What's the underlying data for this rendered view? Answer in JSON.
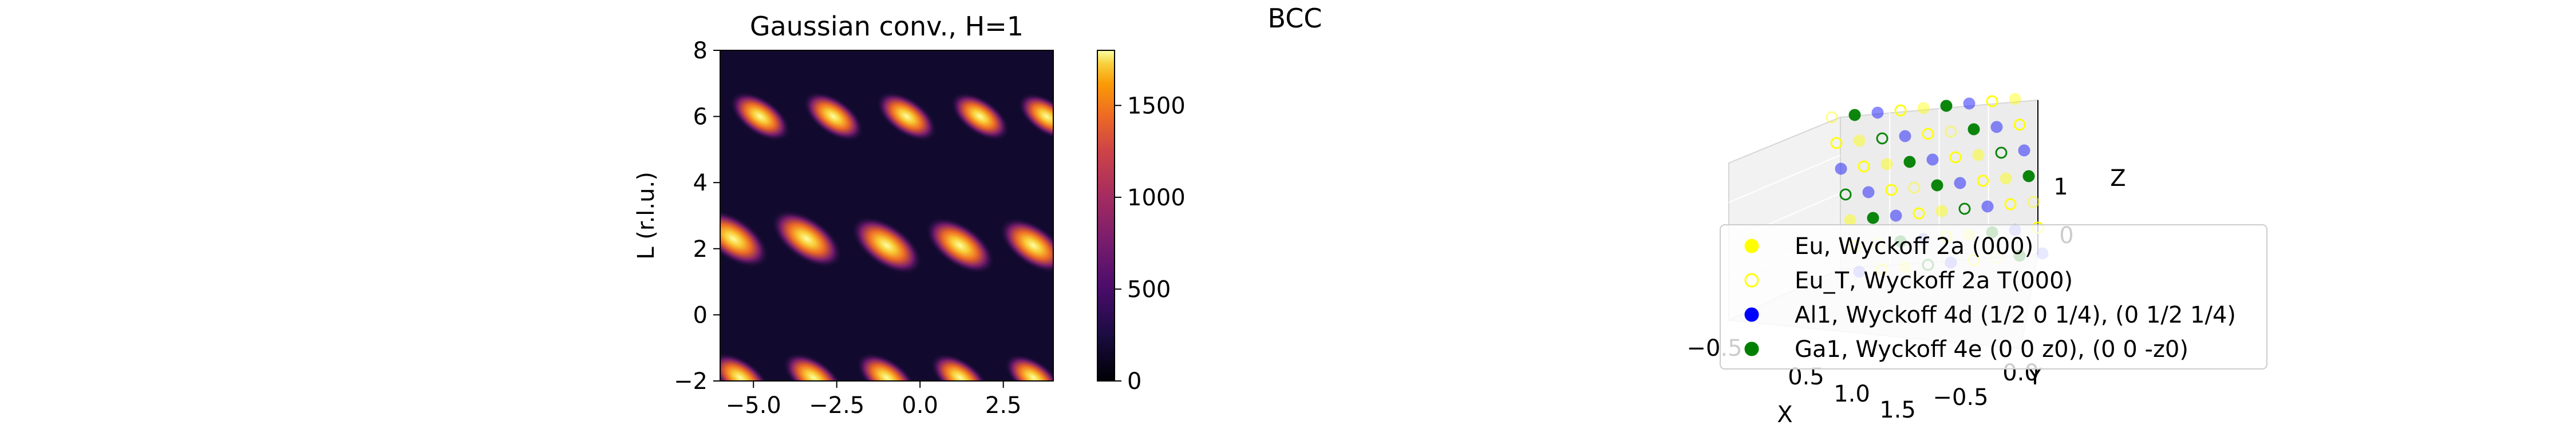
{
  "figure": {
    "suptitle": "BCC"
  },
  "chart_data": [
    {
      "type": "heatmap",
      "title": "Gaussian conv., H=1",
      "xlabel": "",
      "ylabel": "L (r.l.u.)",
      "xlim": [
        -6,
        4
      ],
      "ylim": [
        -2,
        8
      ],
      "x_ticks": [
        -5.0,
        -2.5,
        0.0,
        2.5
      ],
      "x_tick_labels": [
        "−5.0",
        "−2.5",
        "0.0",
        "2.5"
      ],
      "y_ticks": [
        -2,
        0,
        2,
        4,
        6,
        8
      ],
      "y_tick_labels": [
        "−2",
        "0",
        "2",
        "4",
        "6",
        "8"
      ],
      "colormap": "inferno",
      "colorbar": {
        "range": [
          0,
          1800
        ],
        "ticks": [
          0,
          500,
          1000,
          1500
        ],
        "tick_labels": [
          "0",
          "500",
          "1000",
          "1500"
        ]
      },
      "peaks": [
        {
          "x": -5.6,
          "y": 2.3,
          "value": 1800
        },
        {
          "x": -3.4,
          "y": 2.3,
          "value": 1800
        },
        {
          "x": -1.0,
          "y": 2.1,
          "value": 1800
        },
        {
          "x": 1.2,
          "y": 2.1,
          "value": 1750
        },
        {
          "x": 3.4,
          "y": 2.1,
          "value": 1700
        },
        {
          "x": -4.8,
          "y": 6.0,
          "value": 1500
        },
        {
          "x": -2.6,
          "y": 6.0,
          "value": 1500
        },
        {
          "x": -0.4,
          "y": 6.0,
          "value": 1500
        },
        {
          "x": 1.8,
          "y": 6.0,
          "value": 1450
        },
        {
          "x": 3.8,
          "y": 6.0,
          "value": 1400
        },
        {
          "x": -5.4,
          "y": -1.9,
          "value": 1500
        },
        {
          "x": -3.2,
          "y": -1.9,
          "value": 1500
        },
        {
          "x": -1.0,
          "y": -1.9,
          "value": 1500
        },
        {
          "x": 1.2,
          "y": -1.9,
          "value": 1450
        },
        {
          "x": 3.4,
          "y": -1.9,
          "value": 1400
        }
      ]
    },
    {
      "type": "scatter3d",
      "axes": {
        "x": {
          "label": "X",
          "tick_labels": [
            "0.5",
            "1.0",
            "1.5"
          ]
        },
        "y": {
          "label": "Y",
          "tick_labels": [
            "−0.5",
            "0.0"
          ]
        },
        "z": {
          "label": "Z",
          "tick_labels": [
            "1",
            "0"
          ]
        },
        "extra_tick_labels": [
          "−0.5"
        ]
      },
      "legend": {
        "placement": "lower-center",
        "entries": [
          {
            "label": "Eu, Wyckoff 2a (000)",
            "marker": "filled",
            "color": "#ffff00"
          },
          {
            "label": "Eu_T, Wyckoff 2a T(000)",
            "marker": "hollow",
            "color": "#ffff00"
          },
          {
            "label": "Al1, Wyckoff 4d (1/2 0 1/4), (0 1/2 1/4)",
            "marker": "filled",
            "color": "#0000ff"
          },
          {
            "label": "Ga1, Wyckoff 4e (0 0 z0), (0 0 -z0)",
            "marker": "filled",
            "color": "#008000"
          }
        ]
      }
    }
  ]
}
